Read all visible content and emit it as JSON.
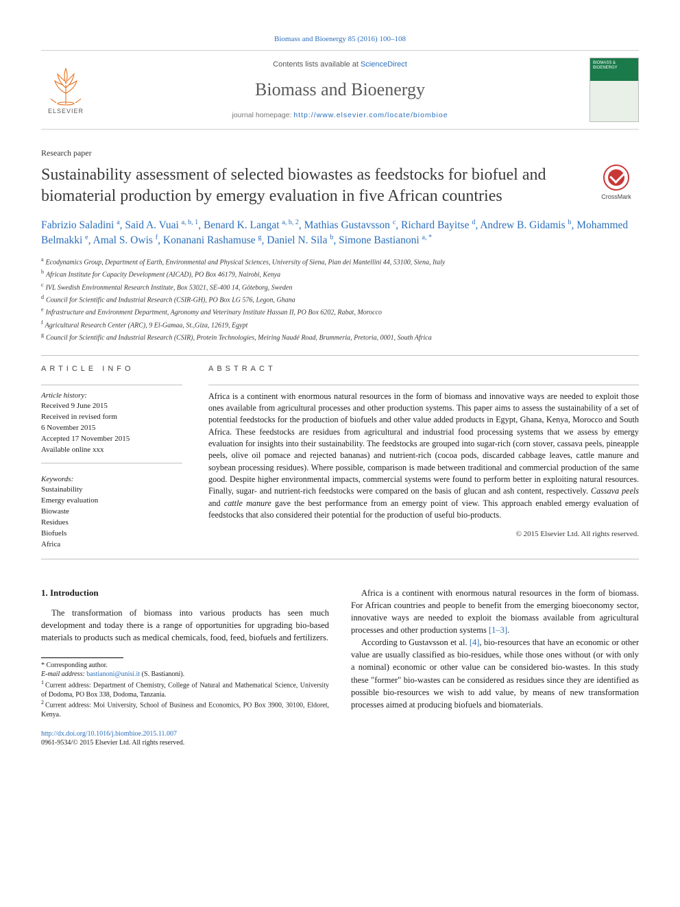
{
  "citation": "Biomass and Bioenergy 85 (2016) 100–108",
  "header": {
    "contents_prefix": "Contents lists available at ",
    "contents_link": "ScienceDirect",
    "journal": "Biomass and Bioenergy",
    "homepage_prefix": "journal homepage: ",
    "homepage_url": "http://www.elsevier.com/locate/biombioe",
    "publisher": "ELSEVIER",
    "cover_title": "BIOMASS & BIOENERGY"
  },
  "paper_type": "Research paper",
  "title": "Sustainability assessment of selected biowastes as feedstocks for biofuel and biomaterial production by emergy evaluation in five African countries",
  "crossmark": "CrossMark",
  "authors_html": "Fabrizio Saladini <sup>a</sup>, Said A. Vuai <sup>a, b, 1</sup>, Benard K. Langat <sup>a, b, 2</sup>, Mathias Gustavsson <sup>c</sup>, Richard Bayitse <sup>d</sup>, Andrew B. Gidamis <sup>b</sup>, Mohammed Belmakki <sup>e</sup>, Amal S. Owis <sup>f</sup>, Konanani Rashamuse <sup>g</sup>, Daniel N. Sila <sup>b</sup>, Simone Bastianoni <sup>a, *</sup>",
  "affiliations": [
    {
      "sup": "a",
      "text": "Ecodynamics Group, Department of Earth, Environmental and Physical Sciences, University of Siena, Pian dei Mantellini 44, 53100, Siena, Italy"
    },
    {
      "sup": "b",
      "text": "African Institute for Capacity Development (AICAD), PO Box 46179, Nairobi, Kenya"
    },
    {
      "sup": "c",
      "text": "IVL Swedish Environmental Research Institute, Box 53021, SE-400 14, Göteborg, Sweden"
    },
    {
      "sup": "d",
      "text": "Council for Scientific and Industrial Research (CSIR-GH), PO Box LG 576, Legon, Ghana"
    },
    {
      "sup": "e",
      "text": "Infrastructure and Environment Department, Agronomy and Veterinary Institute Hassan II, PO Box 6202, Rabat, Morocco"
    },
    {
      "sup": "f",
      "text": "Agricultural Research Center (ARC), 9 El-Gamaa, St.,Giza, 12619, Egypt"
    },
    {
      "sup": "g",
      "text": "Council for Scientific and Industrial Research (CSIR), Protein Technologies, Meiring Naudé Road, Brummeria, Pretoria, 0001, South Africa"
    }
  ],
  "article_info": {
    "heading": "ARTICLE INFO",
    "history_label": "Article history:",
    "history": [
      "Received 9 June 2015",
      "Received in revised form",
      "6 November 2015",
      "Accepted 17 November 2015",
      "Available online xxx"
    ],
    "keywords_label": "Keywords:",
    "keywords": [
      "Sustainability",
      "Emergy evaluation",
      "Biowaste",
      "Residues",
      "Biofuels",
      "Africa"
    ]
  },
  "abstract": {
    "heading": "ABSTRACT",
    "text": "Africa is a continent with enormous natural resources in the form of biomass and innovative ways are needed to exploit those ones available from agricultural processes and other production systems. This paper aims to assess the sustainability of a set of potential feedstocks for the production of biofuels and other value added products in Egypt, Ghana, Kenya, Morocco and South Africa. These feedstocks are residues from agricultural and industrial food processing systems that we assess by emergy evaluation for insights into their sustainability. The feedstocks are grouped into sugar-rich (corn stover, cassava peels, pineapple peels, olive oil pomace and rejected bananas) and nutrient-rich (cocoa pods, discarded cabbage leaves, cattle manure and soybean processing residues). Where possible, comparison is made between traditional and commercial production of the same good. Despite higher environmental impacts, commercial systems were found to perform better in exploiting natural resources. Finally, sugar- and nutrient-rich feedstocks were compared on the basis of glucan and ash content, respectively. ",
    "text_italic1": "Cassava peels",
    "text_mid": " and ",
    "text_italic2": "cattle manure",
    "text_end": " gave the best performance from an emergy point of view. This approach enabled emergy evaluation of feedstocks that also considered their potential for the production of useful bio-products.",
    "copyright": "© 2015 Elsevier Ltd. All rights reserved."
  },
  "body": {
    "section_number": "1.",
    "section_title": "Introduction",
    "p1": "The transformation of biomass into various products has seen much development and today there is a range of opportunities for upgrading bio-based materials to products such as medical chemicals, food, feed, biofuels and fertilizers.",
    "p2_a": "Africa is a continent with enormous natural resources in the form of biomass. For African countries and people to benefit from the emerging bioeconomy sector, innovative ways are needed to exploit the biomass available from agricultural processes and other production systems ",
    "p2_ref": "[1–3]",
    "p2_b": ".",
    "p3_a": "According to Gustavsson et al. ",
    "p3_ref": "[4]",
    "p3_b": ", bio-resources that have an economic or other value are usually classified as bio-residues, while those ones without (or with only a nominal) economic or other value can be considered bio-wastes. In this study these \"former\" bio-wastes can be considered as residues since they are identified as possible bio-resources we wish to add value, by means of new transformation processes aimed at producing biofuels and biomaterials."
  },
  "footnotes": {
    "corr_label": "* Corresponding author.",
    "email_label": "E-mail address:",
    "email": "bastianoni@unisi.it",
    "email_paren": "(S. Bastianoni).",
    "fn1": "Current address: Department of Chemistry, College of Natural and Mathematical Science, University of Dodoma, PO Box 338, Dodoma, Tanzania.",
    "fn2": "Current address: Moi University, School of Business and Economics, PO Box 3900, 30100, Eldoret, Kenya."
  },
  "doi": {
    "url": "http://dx.doi.org/10.1016/j.biombioe.2015.11.007",
    "issn_line": "0961-9534/© 2015 Elsevier Ltd. All rights reserved."
  },
  "colors": {
    "link": "#2a6ebb",
    "elsevier_orange": "#e9711c",
    "rule": "#bfbfbf"
  }
}
